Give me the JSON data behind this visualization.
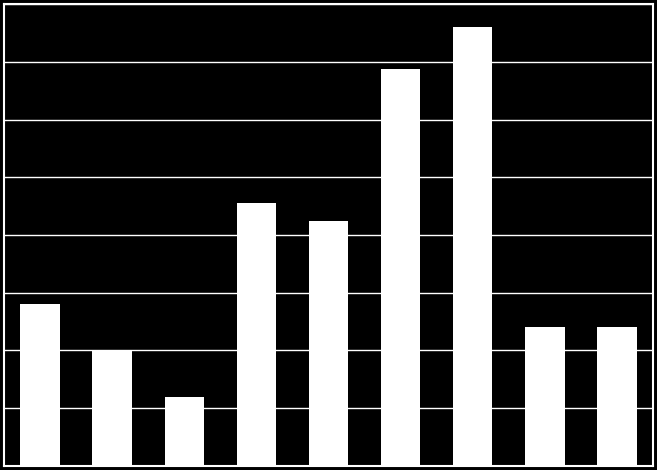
{
  "values": [
    35,
    25,
    15,
    57,
    53,
    86,
    95,
    30,
    30
  ],
  "bar_color": "#ffffff",
  "background_color": "#000000",
  "grid_color": "#ffffff",
  "ylim": [
    0,
    100
  ],
  "bar_width": 0.55,
  "figsize": [
    6.57,
    4.7
  ],
  "dpi": 100,
  "n_gridlines": 8
}
